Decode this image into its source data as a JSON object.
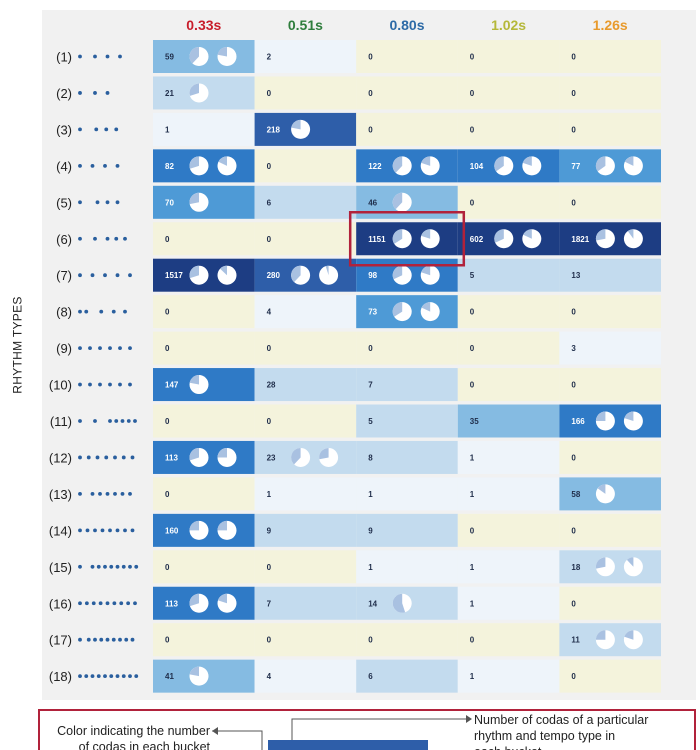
{
  "chart_data": {
    "type": "heatmap",
    "ylabel": "RHYTHM TYPES",
    "columns": [
      {
        "label": "0.33s",
        "color": "#c81e2c"
      },
      {
        "label": "0.51s",
        "color": "#2e7d3c"
      },
      {
        "label": "0.80s",
        "color": "#2d6aa6"
      },
      {
        "label": "1.02s",
        "color": "#b5b83a"
      },
      {
        "label": "1.26s",
        "color": "#e89a2c"
      }
    ],
    "rows": [
      {
        "label": "(1)",
        "dots": [
          0,
          1.2,
          2.2,
          3.2
        ],
        "values": [
          59,
          2,
          0,
          0,
          0
        ]
      },
      {
        "label": "(2)",
        "dots": [
          0,
          1.2,
          2.2
        ],
        "values": [
          21,
          0,
          0,
          0,
          0
        ]
      },
      {
        "label": "(3)",
        "dots": [
          0,
          1.3,
          2.1,
          2.9
        ],
        "values": [
          1,
          218,
          0,
          0,
          0
        ]
      },
      {
        "label": "(4)",
        "dots": [
          0,
          1,
          2,
          3
        ],
        "values": [
          82,
          0,
          122,
          104,
          77
        ]
      },
      {
        "label": "(5)",
        "dots": [
          0,
          1.4,
          2.2,
          3
        ],
        "values": [
          70,
          6,
          46,
          0,
          0
        ]
      },
      {
        "label": "(6)",
        "dots": [
          0,
          1.2,
          2.2,
          2.9,
          3.6
        ],
        "values": [
          0,
          0,
          1151,
          602,
          1821
        ]
      },
      {
        "label": "(7)",
        "dots": [
          0,
          1,
          2,
          3,
          4
        ],
        "values": [
          1517,
          280,
          98,
          5,
          13
        ]
      },
      {
        "label": "(8)",
        "dots": [
          0,
          0.5,
          1.7,
          2.7,
          3.6
        ],
        "values": [
          0,
          4,
          73,
          0,
          0
        ]
      },
      {
        "label": "(9)",
        "dots": [
          0,
          0.8,
          1.6,
          2.4,
          3.2,
          4
        ],
        "values": [
          0,
          0,
          0,
          0,
          3
        ]
      },
      {
        "label": "(10)",
        "dots": [
          0,
          0.8,
          1.6,
          2.4,
          3.2,
          4
        ],
        "values": [
          147,
          28,
          7,
          0,
          0
        ]
      },
      {
        "label": "(11)",
        "dots": [
          0,
          1.2,
          2.4,
          2.9,
          3.4,
          3.9,
          4.4
        ],
        "values": [
          0,
          0,
          5,
          35,
          166
        ]
      },
      {
        "label": "(12)",
        "dots": [
          0,
          0.7,
          1.4,
          2.1,
          2.8,
          3.5,
          4.2
        ],
        "values": [
          113,
          23,
          8,
          1,
          0
        ]
      },
      {
        "label": "(13)",
        "dots": [
          0,
          1,
          1.6,
          2.2,
          2.8,
          3.4,
          4
        ],
        "values": [
          0,
          1,
          1,
          1,
          58
        ]
      },
      {
        "label": "(14)",
        "dots": [
          0,
          0.6,
          1.2,
          1.8,
          2.4,
          3,
          3.6,
          4.2
        ],
        "values": [
          160,
          9,
          9,
          0,
          0
        ]
      },
      {
        "label": "(15)",
        "dots": [
          0,
          1,
          1.5,
          2,
          2.5,
          3,
          3.5,
          4,
          4.5
        ],
        "values": [
          0,
          0,
          1,
          1,
          18
        ]
      },
      {
        "label": "(16)",
        "dots": [
          0,
          0.55,
          1.1,
          1.65,
          2.2,
          2.75,
          3.3,
          3.85,
          4.4
        ],
        "values": [
          113,
          7,
          14,
          1,
          0
        ]
      },
      {
        "label": "(17)",
        "dots": [
          0,
          0.7,
          1.2,
          1.7,
          2.2,
          2.7,
          3.2,
          3.7,
          4.2
        ],
        "values": [
          0,
          0,
          0,
          0,
          11
        ]
      },
      {
        "label": "(18)",
        "dots": [
          0,
          0.5,
          1,
          1.5,
          2,
          2.5,
          3,
          3.5,
          4,
          4.5
        ],
        "values": [
          41,
          4,
          6,
          1,
          0
        ]
      }
    ],
    "pies": [
      {
        "row": 0,
        "col": 0,
        "fracs": [
          0.62,
          0.78
        ]
      },
      {
        "row": 1,
        "col": 0,
        "fracs": [
          0.7
        ]
      },
      {
        "row": 2,
        "col": 1,
        "fracs": [
          0.78
        ]
      },
      {
        "row": 3,
        "col": 0,
        "fracs": [
          0.7,
          0.82
        ]
      },
      {
        "row": 3,
        "col": 2,
        "fracs": [
          0.62,
          0.8
        ]
      },
      {
        "row": 3,
        "col": 3,
        "fracs": [
          0.65,
          0.8
        ]
      },
      {
        "row": 3,
        "col": 4,
        "fracs": [
          0.65,
          0.82
        ]
      },
      {
        "row": 4,
        "col": 0,
        "fracs": [
          0.72
        ]
      },
      {
        "row": 4,
        "col": 2,
        "fracs": [
          0.62
        ]
      },
      {
        "row": 5,
        "col": 2,
        "fracs": [
          0.66,
          0.8
        ]
      },
      {
        "row": 5,
        "col": 3,
        "fracs": [
          0.68,
          0.82
        ]
      },
      {
        "row": 5,
        "col": 4,
        "fracs": [
          0.72,
          0.9
        ]
      },
      {
        "row": 6,
        "col": 0,
        "fracs": [
          0.7,
          0.87
        ]
      },
      {
        "row": 6,
        "col": 1,
        "fracs": [
          0.62,
          0.95
        ]
      },
      {
        "row": 6,
        "col": 2,
        "fracs": [
          0.68,
          0.8
        ]
      },
      {
        "row": 7,
        "col": 2,
        "fracs": [
          0.66,
          0.82
        ]
      },
      {
        "row": 9,
        "col": 0,
        "fracs": [
          0.78
        ]
      },
      {
        "row": 10,
        "col": 4,
        "fracs": [
          0.75,
          0.8
        ]
      },
      {
        "row": 11,
        "col": 0,
        "fracs": [
          0.7,
          0.75
        ]
      },
      {
        "row": 11,
        "col": 1,
        "fracs": [
          0.62,
          0.72
        ]
      },
      {
        "row": 12,
        "col": 4,
        "fracs": [
          0.85
        ]
      },
      {
        "row": 13,
        "col": 0,
        "fracs": [
          0.75,
          0.75
        ]
      },
      {
        "row": 14,
        "col": 4,
        "fracs": [
          0.72,
          0.88
        ]
      },
      {
        "row": 15,
        "col": 0,
        "fracs": [
          0.7,
          0.8
        ]
      },
      {
        "row": 15,
        "col": 2,
        "fracs": [
          0.45
        ]
      },
      {
        "row": 16,
        "col": 4,
        "fracs": [
          0.75,
          0.8
        ]
      },
      {
        "row": 17,
        "col": 0,
        "fracs": [
          0.78
        ]
      }
    ],
    "highlight": {
      "row": 5,
      "col": 2
    }
  },
  "legend": {
    "left_text": [
      "Color indicating the number",
      "of codas in each bucket"
    ],
    "right_text": [
      "Number of codas of a particular",
      "rhythm and tempo type in",
      "each bucket"
    ]
  },
  "colors": {
    "beige": "#f4f3dc",
    "pale_blue": "#eef4fa",
    "light_blue": "#c3dbee",
    "sky_blue": "#85bbe2",
    "mid_blue": "#4e9ad6",
    "blue": "#2f7ac6",
    "dark_blue": "#2e5ea9",
    "navy": "#1d3d83",
    "pie_slice": "#a9c1e1",
    "dot_blue": "#2a5f9e",
    "highlight_red": "#b1223b"
  }
}
